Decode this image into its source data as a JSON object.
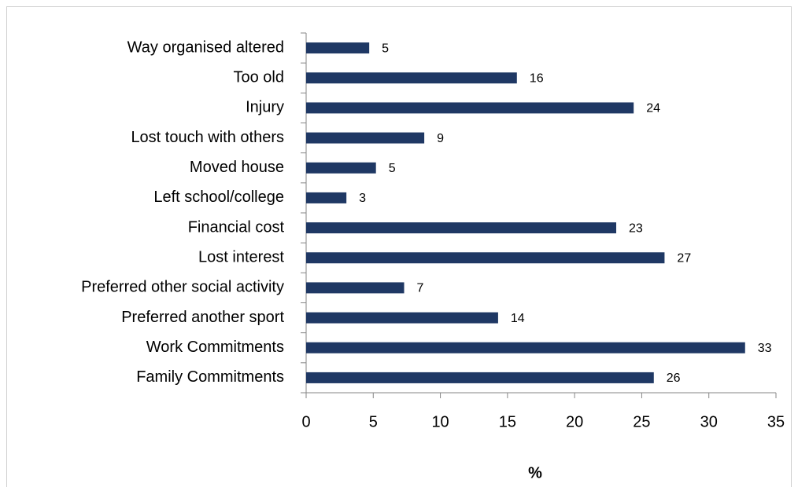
{
  "chart_data": {
    "type": "bar",
    "orientation": "horizontal",
    "categories": [
      "Way organised  altered",
      "Too old",
      "Injury",
      "Lost touch with others",
      "Moved house",
      "Left school/college",
      "Financial cost",
      "Lost interest",
      "Preferred other social activity",
      "Preferred another sport",
      "Work Commitments",
      "Family Commitments"
    ],
    "values": [
      4.7,
      15.7,
      24.4,
      8.8,
      5.2,
      3.0,
      23.1,
      26.7,
      7.3,
      14.3,
      32.7,
      25.9
    ],
    "value_labels": [
      "5",
      "16",
      "24",
      "9",
      "5",
      "3",
      "23",
      "27",
      "7",
      "14",
      "33",
      "26"
    ],
    "color": "#1f3864",
    "xlabel": "%",
    "xlim": [
      0,
      35
    ],
    "xticks": [
      0,
      5,
      10,
      15,
      20,
      25,
      30,
      35
    ],
    "grid": false
  }
}
